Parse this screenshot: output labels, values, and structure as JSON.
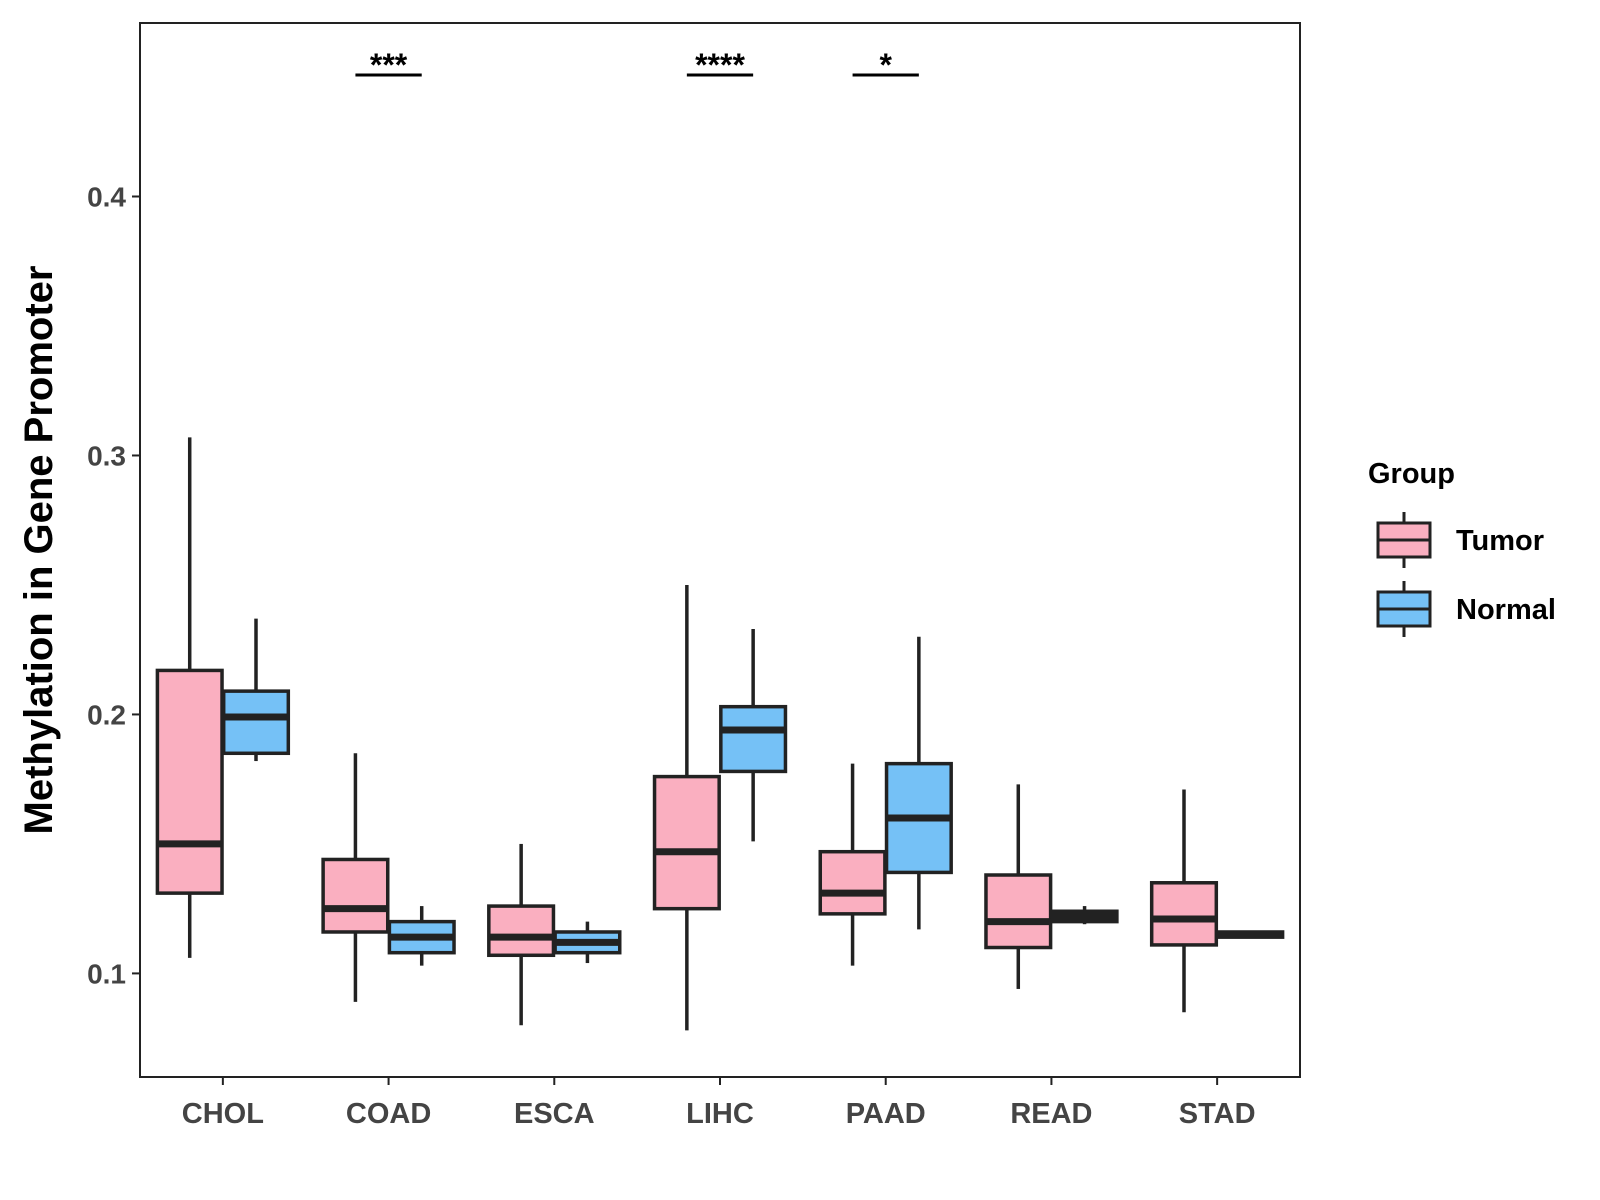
{
  "chart_data": {
    "type": "boxplot",
    "title": "",
    "xlabel": "",
    "ylabel": "Methylation in Gene Promoter",
    "ylim": [
      0.06,
      0.467
    ],
    "yticks": [
      0.1,
      0.2,
      0.3,
      0.4
    ],
    "ytick_labels": [
      "0.1",
      "0.2",
      "0.3",
      "0.4"
    ],
    "categories": [
      "CHOL",
      "COAD",
      "ESCA",
      "LIHC",
      "PAAD",
      "READ",
      "STAD"
    ],
    "legend": {
      "title": "Group",
      "placement": "right",
      "entries": [
        {
          "name": "Tumor",
          "color": "#FAAFC0"
        },
        {
          "name": "Normal",
          "color": "#75C1F6"
        }
      ]
    },
    "series": [
      {
        "name": "Tumor",
        "color": "#FAAFC0",
        "boxes": [
          {
            "category": "CHOL",
            "min": 0.106,
            "q1": 0.131,
            "median": 0.15,
            "q3": 0.217,
            "max": 0.307
          },
          {
            "category": "COAD",
            "min": 0.089,
            "q1": 0.116,
            "median": 0.125,
            "q3": 0.144,
            "max": 0.185
          },
          {
            "category": "ESCA",
            "min": 0.08,
            "q1": 0.107,
            "median": 0.114,
            "q3": 0.126,
            "max": 0.15
          },
          {
            "category": "LIHC",
            "min": 0.078,
            "q1": 0.125,
            "median": 0.147,
            "q3": 0.176,
            "max": 0.25
          },
          {
            "category": "PAAD",
            "min": 0.103,
            "q1": 0.123,
            "median": 0.131,
            "q3": 0.147,
            "max": 0.181
          },
          {
            "category": "READ",
            "min": 0.094,
            "q1": 0.11,
            "median": 0.12,
            "q3": 0.138,
            "max": 0.173
          },
          {
            "category": "STAD",
            "min": 0.085,
            "q1": 0.111,
            "median": 0.121,
            "q3": 0.135,
            "max": 0.171
          }
        ]
      },
      {
        "name": "Normal",
        "color": "#75C1F6",
        "boxes": [
          {
            "category": "CHOL",
            "min": 0.182,
            "q1": 0.185,
            "median": 0.199,
            "q3": 0.209,
            "max": 0.237
          },
          {
            "category": "COAD",
            "min": 0.103,
            "q1": 0.108,
            "median": 0.114,
            "q3": 0.12,
            "max": 0.126
          },
          {
            "category": "ESCA",
            "min": 0.104,
            "q1": 0.108,
            "median": 0.112,
            "q3": 0.116,
            "max": 0.12
          },
          {
            "category": "LIHC",
            "min": 0.151,
            "q1": 0.178,
            "median": 0.194,
            "q3": 0.203,
            "max": 0.233
          },
          {
            "category": "PAAD",
            "min": 0.117,
            "q1": 0.139,
            "median": 0.16,
            "q3": 0.181,
            "max": 0.23
          },
          {
            "category": "READ",
            "min": 0.119,
            "q1": 0.12,
            "median": 0.122,
            "q3": 0.124,
            "max": 0.126
          },
          {
            "category": "STAD",
            "min": 0.114,
            "q1": 0.114,
            "median": 0.115,
            "q3": 0.116,
            "max": 0.116
          }
        ]
      }
    ],
    "significance": [
      {
        "category": "COAD",
        "label": "***"
      },
      {
        "category": "LIHC",
        "label": "****"
      },
      {
        "category": "PAAD",
        "label": "*"
      }
    ],
    "grid": false
  }
}
